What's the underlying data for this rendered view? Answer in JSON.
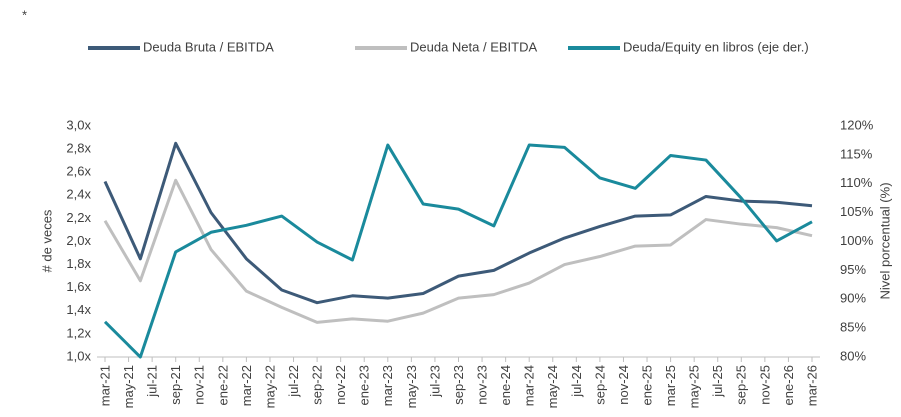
{
  "note": "*",
  "chart_data": {
    "type": "line",
    "y_label": "# de veces",
    "y2_label": "Nivel porcentual (%)",
    "x": [
      "2021-03",
      "2021-06",
      "2021-09",
      "2021-12",
      "2022-03",
      "2022-06",
      "2022-09",
      "2022-12",
      "2023-03",
      "2023-06",
      "2023-09",
      "2023-12",
      "2024-03",
      "2024-06",
      "2024-09",
      "2024-12",
      "2025-03",
      "2025-06",
      "2025-09",
      "2025-12",
      "2026-03"
    ],
    "xticks": [
      {
        "value": "2021-03",
        "label": "mar-21"
      },
      {
        "value": "2021-05",
        "label": "may-21"
      },
      {
        "value": "2021-07",
        "label": "jul-21"
      },
      {
        "value": "2021-09",
        "label": "sep-21"
      },
      {
        "value": "2021-11",
        "label": "nov-21"
      },
      {
        "value": "2022-01",
        "label": "ene-22"
      },
      {
        "value": "2022-03",
        "label": "mar-22"
      },
      {
        "value": "2022-05",
        "label": "may-22"
      },
      {
        "value": "2022-07",
        "label": "jul-22"
      },
      {
        "value": "2022-09",
        "label": "sep-22"
      },
      {
        "value": "2022-11",
        "label": "nov-22"
      },
      {
        "value": "2023-01",
        "label": "ene-23"
      },
      {
        "value": "2023-03",
        "label": "mar-23"
      },
      {
        "value": "2023-05",
        "label": "may-23"
      },
      {
        "value": "2023-07",
        "label": "jul-23"
      },
      {
        "value": "2023-09",
        "label": "sep-23"
      },
      {
        "value": "2023-11",
        "label": "nov-23"
      },
      {
        "value": "2024-01",
        "label": "ene-24"
      },
      {
        "value": "2024-03",
        "label": "mar-24"
      },
      {
        "value": "2024-05",
        "label": "may-24"
      },
      {
        "value": "2024-07",
        "label": "jul-24"
      },
      {
        "value": "2024-09",
        "label": "sep-24"
      },
      {
        "value": "2024-11",
        "label": "nov-24"
      },
      {
        "value": "2025-01",
        "label": "ene-25"
      },
      {
        "value": "2025-03",
        "label": "mar-25"
      },
      {
        "value": "2025-05",
        "label": "may-25"
      },
      {
        "value": "2025-07",
        "label": "jul-25"
      },
      {
        "value": "2025-09",
        "label": "sep-25"
      },
      {
        "value": "2025-11",
        "label": "nov-25"
      },
      {
        "value": "2026-01",
        "label": "ene-26"
      },
      {
        "value": "2026-03",
        "label": "mar-26"
      }
    ],
    "xlim": [
      "2021-03",
      "2026-03"
    ],
    "ylim": [
      1.0,
      3.0
    ],
    "yticks": [
      {
        "value": 1.0,
        "label": "1,0x"
      },
      {
        "value": 1.2,
        "label": "1,2x"
      },
      {
        "value": 1.4,
        "label": "1,4x"
      },
      {
        "value": 1.6,
        "label": "1,6x"
      },
      {
        "value": 1.8,
        "label": "1,8x"
      },
      {
        "value": 2.0,
        "label": "2,0x"
      },
      {
        "value": 2.2,
        "label": "2,2x"
      },
      {
        "value": 2.4,
        "label": "2,4x"
      },
      {
        "value": 2.6,
        "label": "2,6x"
      },
      {
        "value": 2.8,
        "label": "2,8x"
      },
      {
        "value": 3.0,
        "label": "3,0x"
      }
    ],
    "y2lim": [
      80,
      120
    ],
    "y2ticks": [
      {
        "value": 80,
        "label": "80%"
      },
      {
        "value": 85,
        "label": "85%"
      },
      {
        "value": 90,
        "label": "90%"
      },
      {
        "value": 95,
        "label": "95%"
      },
      {
        "value": 100,
        "label": "100%"
      },
      {
        "value": 105,
        "label": "105%"
      },
      {
        "value": 110,
        "label": "110%"
      },
      {
        "value": 115,
        "label": "115%"
      },
      {
        "value": 120,
        "label": "120%"
      }
    ],
    "legend": "top",
    "series": [
      {
        "name": "Deuda Bruta / EBITDA",
        "color": "#3d5a78",
        "values": [
          2.52,
          1.85,
          2.85,
          2.25,
          1.85,
          1.58,
          1.47,
          1.53,
          1.51,
          1.55,
          1.7,
          1.75,
          1.9,
          2.03,
          2.13,
          2.22,
          2.23,
          2.39,
          2.35,
          2.34,
          2.31
        ]
      },
      {
        "name": "Deuda Neta / EBITDA",
        "color": "#bfbfbf",
        "values": [
          2.18,
          1.66,
          2.53,
          1.93,
          1.57,
          1.43,
          1.3,
          1.33,
          1.31,
          1.38,
          1.51,
          1.54,
          1.64,
          1.8,
          1.87,
          1.96,
          1.97,
          2.19,
          2.15,
          2.12,
          2.05
        ]
      },
      {
        "name": "Deuda/Equity en libros (eje der.)",
        "color": "#1a8a9c",
        "axis": "y2",
        "values": [
          86.1,
          80,
          98.2,
          101.6,
          102.8,
          104.4,
          99.9,
          96.8,
          116.7,
          106.5,
          105.6,
          102.7,
          116.7,
          116.3,
          111,
          109.2,
          114.9,
          114.1,
          107.5,
          100.1,
          103.4
        ]
      }
    ]
  }
}
